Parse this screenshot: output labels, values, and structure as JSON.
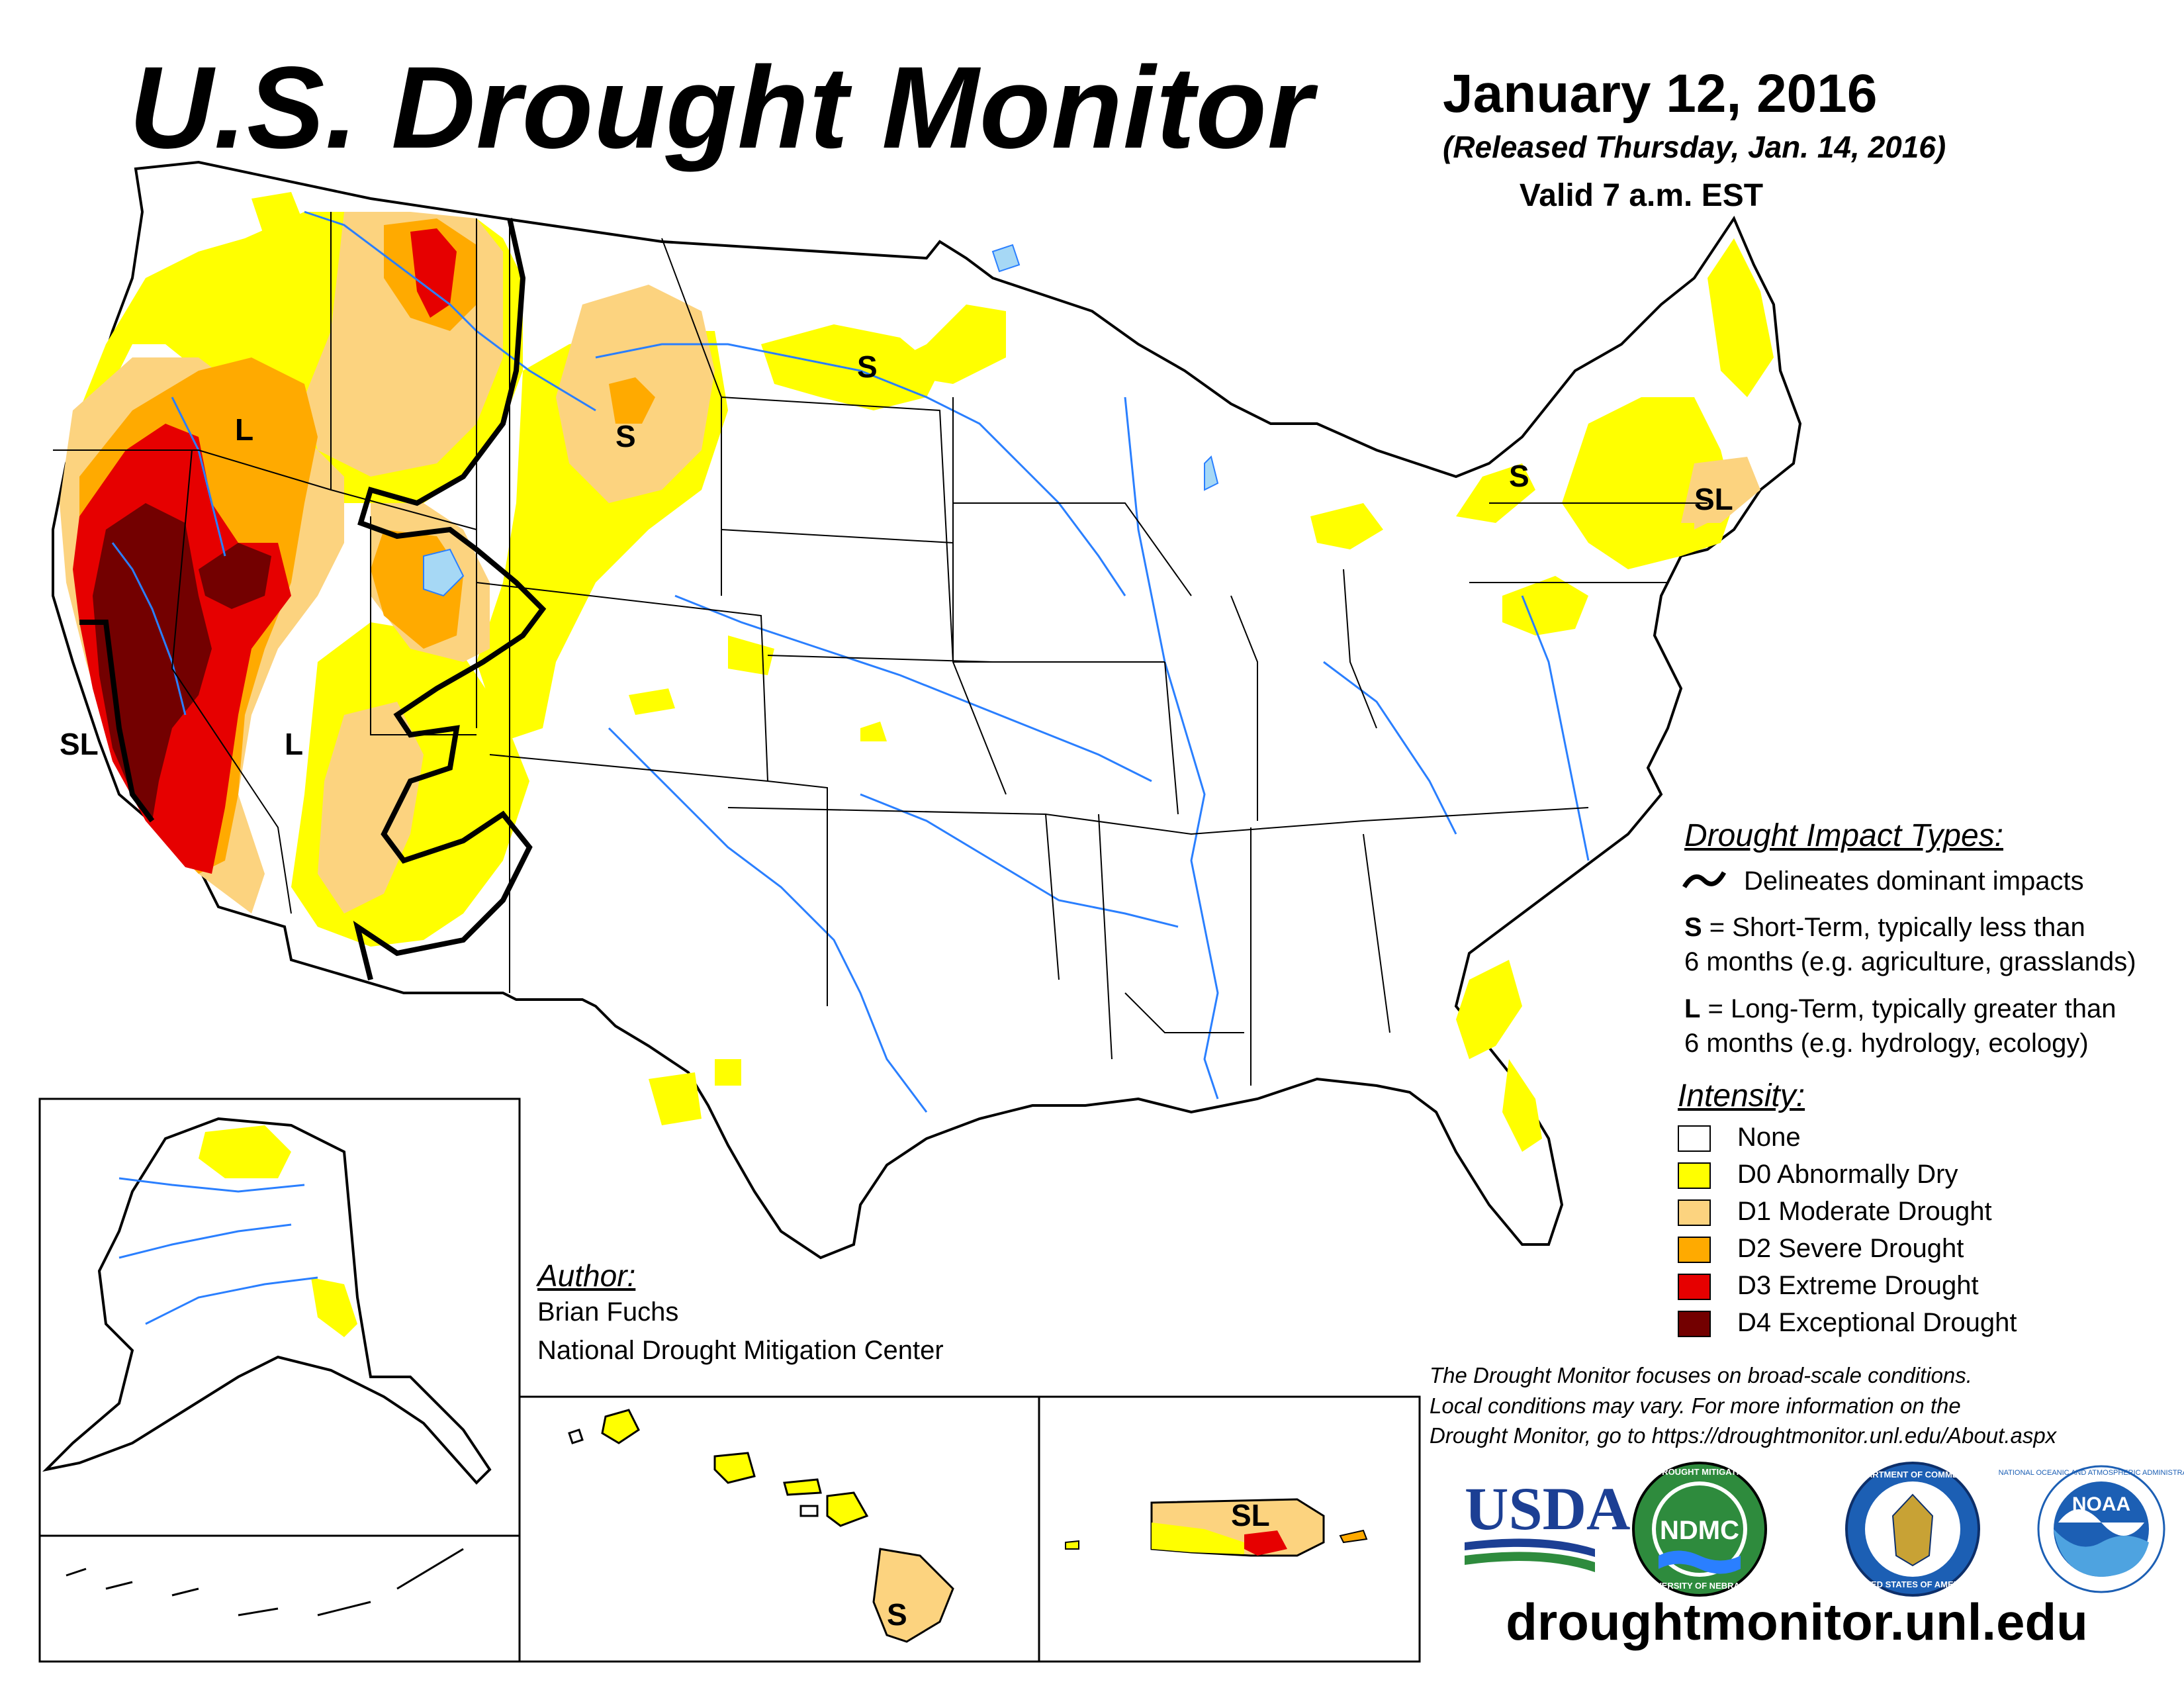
{
  "header": {
    "title": "U.S. Drought Monitor",
    "date": "January 12, 2016",
    "released": "(Released Thursday, Jan. 14, 2016)",
    "valid": "Valid 7 a.m. EST"
  },
  "impact_legend": {
    "heading": "Drought Impact Types:",
    "delineates": "Delineates dominant impacts",
    "short_term_code": "S",
    "short_term_line1": " = Short-Term, typically less than",
    "short_term_line2": "6 months (e.g. agriculture, grasslands)",
    "long_term_code": "L",
    "long_term_line1": " = Long-Term, typically greater than",
    "long_term_line2": "6 months (e.g. hydrology, ecology)"
  },
  "intensity_legend": {
    "heading": "Intensity:",
    "items": [
      {
        "label": "None",
        "color": "#ffffff"
      },
      {
        "label": "D0 Abnormally Dry",
        "color": "#ffff00"
      },
      {
        "label": "D1 Moderate Drought",
        "color": "#fcd37f"
      },
      {
        "label": "D2 Severe Drought",
        "color": "#ffaa00"
      },
      {
        "label": "D3 Extreme Drought",
        "color": "#e60000"
      },
      {
        "label": "D4 Exceptional Drought",
        "color": "#730000"
      }
    ]
  },
  "author": {
    "heading": "Author:",
    "name": "Brian Fuchs",
    "organization": "National Drought Mitigation Center"
  },
  "note": {
    "line1": "The Drought Monitor focuses on broad-scale conditions.",
    "line2": "Local conditions may vary. For more information on the",
    "line3": "Drought Monitor, go to https://droughtmonitor.unl.edu/About.aspx"
  },
  "url": "droughtmonitor.unl.edu",
  "impact_labels": {
    "california_west": "SL",
    "california_east": "L",
    "oregon": "L",
    "montana": "S",
    "north_dakota": "S",
    "new_york": "S",
    "connecticut": "SL",
    "hawaii": "S",
    "puerto_rico": "SL"
  },
  "logos": {
    "usda": "USDA",
    "ndmc": "NDMC",
    "ndmc_ring_top": "NATIONAL DROUGHT MITIGATION CENTER",
    "ndmc_ring_bottom": "UNIVERSITY OF NEBRASKA",
    "commerce_ring_top": "DEPARTMENT OF COMMERCE",
    "commerce_ring_bottom": "UNITED STATES OF AMERICA",
    "noaa": "NOAA",
    "noaa_ring": "NATIONAL OCEANIC AND ATMOSPHERIC ADMINISTRATION"
  },
  "colors": {
    "water": "#2a7fff",
    "lake": "#a6d8f5"
  }
}
